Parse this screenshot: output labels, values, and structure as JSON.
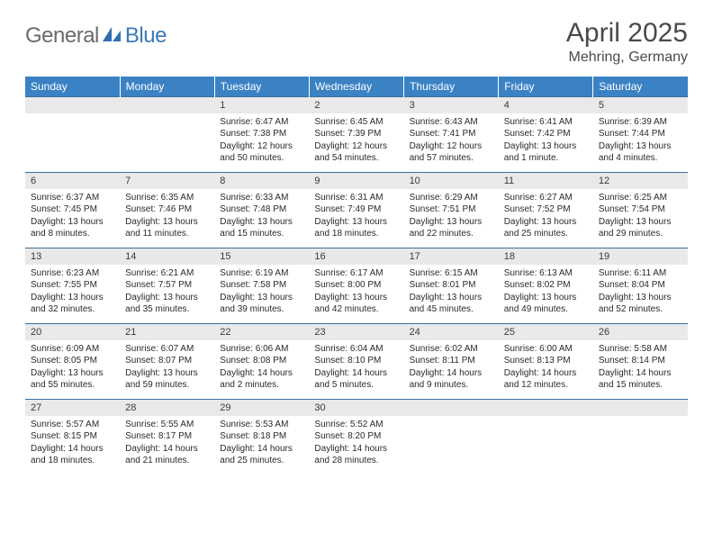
{
  "logo": {
    "part1": "General",
    "part2": "Blue"
  },
  "title": "April 2025",
  "location": "Mehring, Germany",
  "colors": {
    "header_bg": "#3b82c4",
    "header_text": "#ffffff",
    "daynum_bg": "#e9e9e9",
    "daynum_border": "#3b6fa0",
    "body_text": "#2a2a2a",
    "logo_gray": "#6b6b6b",
    "logo_blue": "#3a7ab8"
  },
  "weekdays": [
    "Sunday",
    "Monday",
    "Tuesday",
    "Wednesday",
    "Thursday",
    "Friday",
    "Saturday"
  ],
  "weeks": [
    [
      null,
      null,
      {
        "n": "1",
        "sr": "Sunrise: 6:47 AM",
        "ss": "Sunset: 7:38 PM",
        "dl": "Daylight: 12 hours and 50 minutes."
      },
      {
        "n": "2",
        "sr": "Sunrise: 6:45 AM",
        "ss": "Sunset: 7:39 PM",
        "dl": "Daylight: 12 hours and 54 minutes."
      },
      {
        "n": "3",
        "sr": "Sunrise: 6:43 AM",
        "ss": "Sunset: 7:41 PM",
        "dl": "Daylight: 12 hours and 57 minutes."
      },
      {
        "n": "4",
        "sr": "Sunrise: 6:41 AM",
        "ss": "Sunset: 7:42 PM",
        "dl": "Daylight: 13 hours and 1 minute."
      },
      {
        "n": "5",
        "sr": "Sunrise: 6:39 AM",
        "ss": "Sunset: 7:44 PM",
        "dl": "Daylight: 13 hours and 4 minutes."
      }
    ],
    [
      {
        "n": "6",
        "sr": "Sunrise: 6:37 AM",
        "ss": "Sunset: 7:45 PM",
        "dl": "Daylight: 13 hours and 8 minutes."
      },
      {
        "n": "7",
        "sr": "Sunrise: 6:35 AM",
        "ss": "Sunset: 7:46 PM",
        "dl": "Daylight: 13 hours and 11 minutes."
      },
      {
        "n": "8",
        "sr": "Sunrise: 6:33 AM",
        "ss": "Sunset: 7:48 PM",
        "dl": "Daylight: 13 hours and 15 minutes."
      },
      {
        "n": "9",
        "sr": "Sunrise: 6:31 AM",
        "ss": "Sunset: 7:49 PM",
        "dl": "Daylight: 13 hours and 18 minutes."
      },
      {
        "n": "10",
        "sr": "Sunrise: 6:29 AM",
        "ss": "Sunset: 7:51 PM",
        "dl": "Daylight: 13 hours and 22 minutes."
      },
      {
        "n": "11",
        "sr": "Sunrise: 6:27 AM",
        "ss": "Sunset: 7:52 PM",
        "dl": "Daylight: 13 hours and 25 minutes."
      },
      {
        "n": "12",
        "sr": "Sunrise: 6:25 AM",
        "ss": "Sunset: 7:54 PM",
        "dl": "Daylight: 13 hours and 29 minutes."
      }
    ],
    [
      {
        "n": "13",
        "sr": "Sunrise: 6:23 AM",
        "ss": "Sunset: 7:55 PM",
        "dl": "Daylight: 13 hours and 32 minutes."
      },
      {
        "n": "14",
        "sr": "Sunrise: 6:21 AM",
        "ss": "Sunset: 7:57 PM",
        "dl": "Daylight: 13 hours and 35 minutes."
      },
      {
        "n": "15",
        "sr": "Sunrise: 6:19 AM",
        "ss": "Sunset: 7:58 PM",
        "dl": "Daylight: 13 hours and 39 minutes."
      },
      {
        "n": "16",
        "sr": "Sunrise: 6:17 AM",
        "ss": "Sunset: 8:00 PM",
        "dl": "Daylight: 13 hours and 42 minutes."
      },
      {
        "n": "17",
        "sr": "Sunrise: 6:15 AM",
        "ss": "Sunset: 8:01 PM",
        "dl": "Daylight: 13 hours and 45 minutes."
      },
      {
        "n": "18",
        "sr": "Sunrise: 6:13 AM",
        "ss": "Sunset: 8:02 PM",
        "dl": "Daylight: 13 hours and 49 minutes."
      },
      {
        "n": "19",
        "sr": "Sunrise: 6:11 AM",
        "ss": "Sunset: 8:04 PM",
        "dl": "Daylight: 13 hours and 52 minutes."
      }
    ],
    [
      {
        "n": "20",
        "sr": "Sunrise: 6:09 AM",
        "ss": "Sunset: 8:05 PM",
        "dl": "Daylight: 13 hours and 55 minutes."
      },
      {
        "n": "21",
        "sr": "Sunrise: 6:07 AM",
        "ss": "Sunset: 8:07 PM",
        "dl": "Daylight: 13 hours and 59 minutes."
      },
      {
        "n": "22",
        "sr": "Sunrise: 6:06 AM",
        "ss": "Sunset: 8:08 PM",
        "dl": "Daylight: 14 hours and 2 minutes."
      },
      {
        "n": "23",
        "sr": "Sunrise: 6:04 AM",
        "ss": "Sunset: 8:10 PM",
        "dl": "Daylight: 14 hours and 5 minutes."
      },
      {
        "n": "24",
        "sr": "Sunrise: 6:02 AM",
        "ss": "Sunset: 8:11 PM",
        "dl": "Daylight: 14 hours and 9 minutes."
      },
      {
        "n": "25",
        "sr": "Sunrise: 6:00 AM",
        "ss": "Sunset: 8:13 PM",
        "dl": "Daylight: 14 hours and 12 minutes."
      },
      {
        "n": "26",
        "sr": "Sunrise: 5:58 AM",
        "ss": "Sunset: 8:14 PM",
        "dl": "Daylight: 14 hours and 15 minutes."
      }
    ],
    [
      {
        "n": "27",
        "sr": "Sunrise: 5:57 AM",
        "ss": "Sunset: 8:15 PM",
        "dl": "Daylight: 14 hours and 18 minutes."
      },
      {
        "n": "28",
        "sr": "Sunrise: 5:55 AM",
        "ss": "Sunset: 8:17 PM",
        "dl": "Daylight: 14 hours and 21 minutes."
      },
      {
        "n": "29",
        "sr": "Sunrise: 5:53 AM",
        "ss": "Sunset: 8:18 PM",
        "dl": "Daylight: 14 hours and 25 minutes."
      },
      {
        "n": "30",
        "sr": "Sunrise: 5:52 AM",
        "ss": "Sunset: 8:20 PM",
        "dl": "Daylight: 14 hours and 28 minutes."
      },
      null,
      null,
      null
    ]
  ]
}
